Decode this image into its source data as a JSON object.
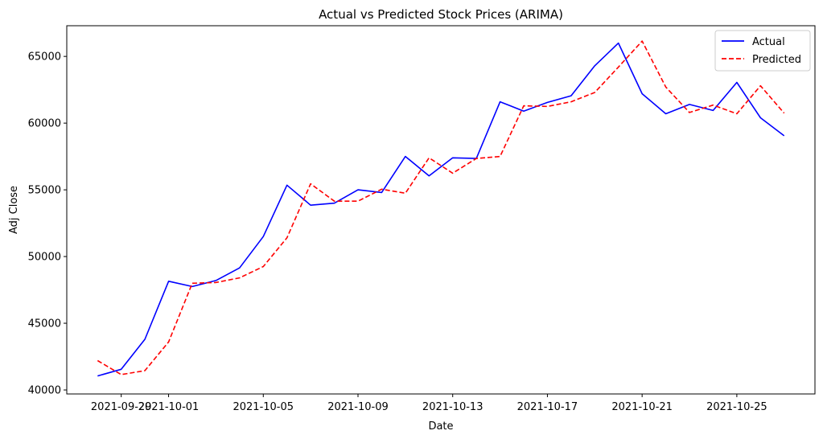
{
  "chart_data": {
    "type": "line",
    "title": "Actual vs Predicted Stock Prices (ARIMA)",
    "xlabel": "Date",
    "ylabel": "Adj Close",
    "x": [
      "2021-09-28",
      "2021-09-29",
      "2021-09-30",
      "2021-10-01",
      "2021-10-02",
      "2021-10-03",
      "2021-10-04",
      "2021-10-05",
      "2021-10-06",
      "2021-10-07",
      "2021-10-08",
      "2021-10-09",
      "2021-10-10",
      "2021-10-11",
      "2021-10-12",
      "2021-10-13",
      "2021-10-14",
      "2021-10-15",
      "2021-10-16",
      "2021-10-17",
      "2021-10-18",
      "2021-10-19",
      "2021-10-20",
      "2021-10-21",
      "2021-10-22",
      "2021-10-23",
      "2021-10-24",
      "2021-10-25",
      "2021-10-26",
      "2021-10-27"
    ],
    "x_ticks": [
      "2021-09-29",
      "2021-10-01",
      "2021-10-05",
      "2021-10-09",
      "2021-10-13",
      "2021-10-17",
      "2021-10-21",
      "2021-10-25"
    ],
    "y_ticks": [
      40000,
      45000,
      50000,
      55000,
      60000,
      65000
    ],
    "ylim": [
      39700,
      67300
    ],
    "xlim": [
      "2021-09-26 16:48",
      "2021-10-28 07:12"
    ],
    "grid": false,
    "legend_position": "top-right",
    "series": [
      {
        "name": "Actual",
        "color": "#0000ff",
        "style": "solid",
        "values": [
          41050,
          41550,
          43800,
          48150,
          47750,
          48200,
          49150,
          51500,
          55350,
          53850,
          54000,
          55000,
          54800,
          57500,
          56050,
          57400,
          57350,
          61600,
          60900,
          61550,
          62050,
          64300,
          66000,
          62200,
          60700,
          61400,
          60950,
          63050,
          60400,
          59050
        ]
      },
      {
        "name": "Predicted",
        "color": "#ff0000",
        "style": "dashed",
        "values": [
          42200,
          41150,
          41450,
          43600,
          48000,
          48050,
          48400,
          49250,
          51400,
          55450,
          54150,
          54150,
          55050,
          54750,
          57400,
          56250,
          57350,
          57500,
          61300,
          61250,
          61600,
          62300,
          64200,
          66150,
          62700,
          60800,
          61350,
          60700,
          62800,
          60750
        ]
      }
    ]
  }
}
